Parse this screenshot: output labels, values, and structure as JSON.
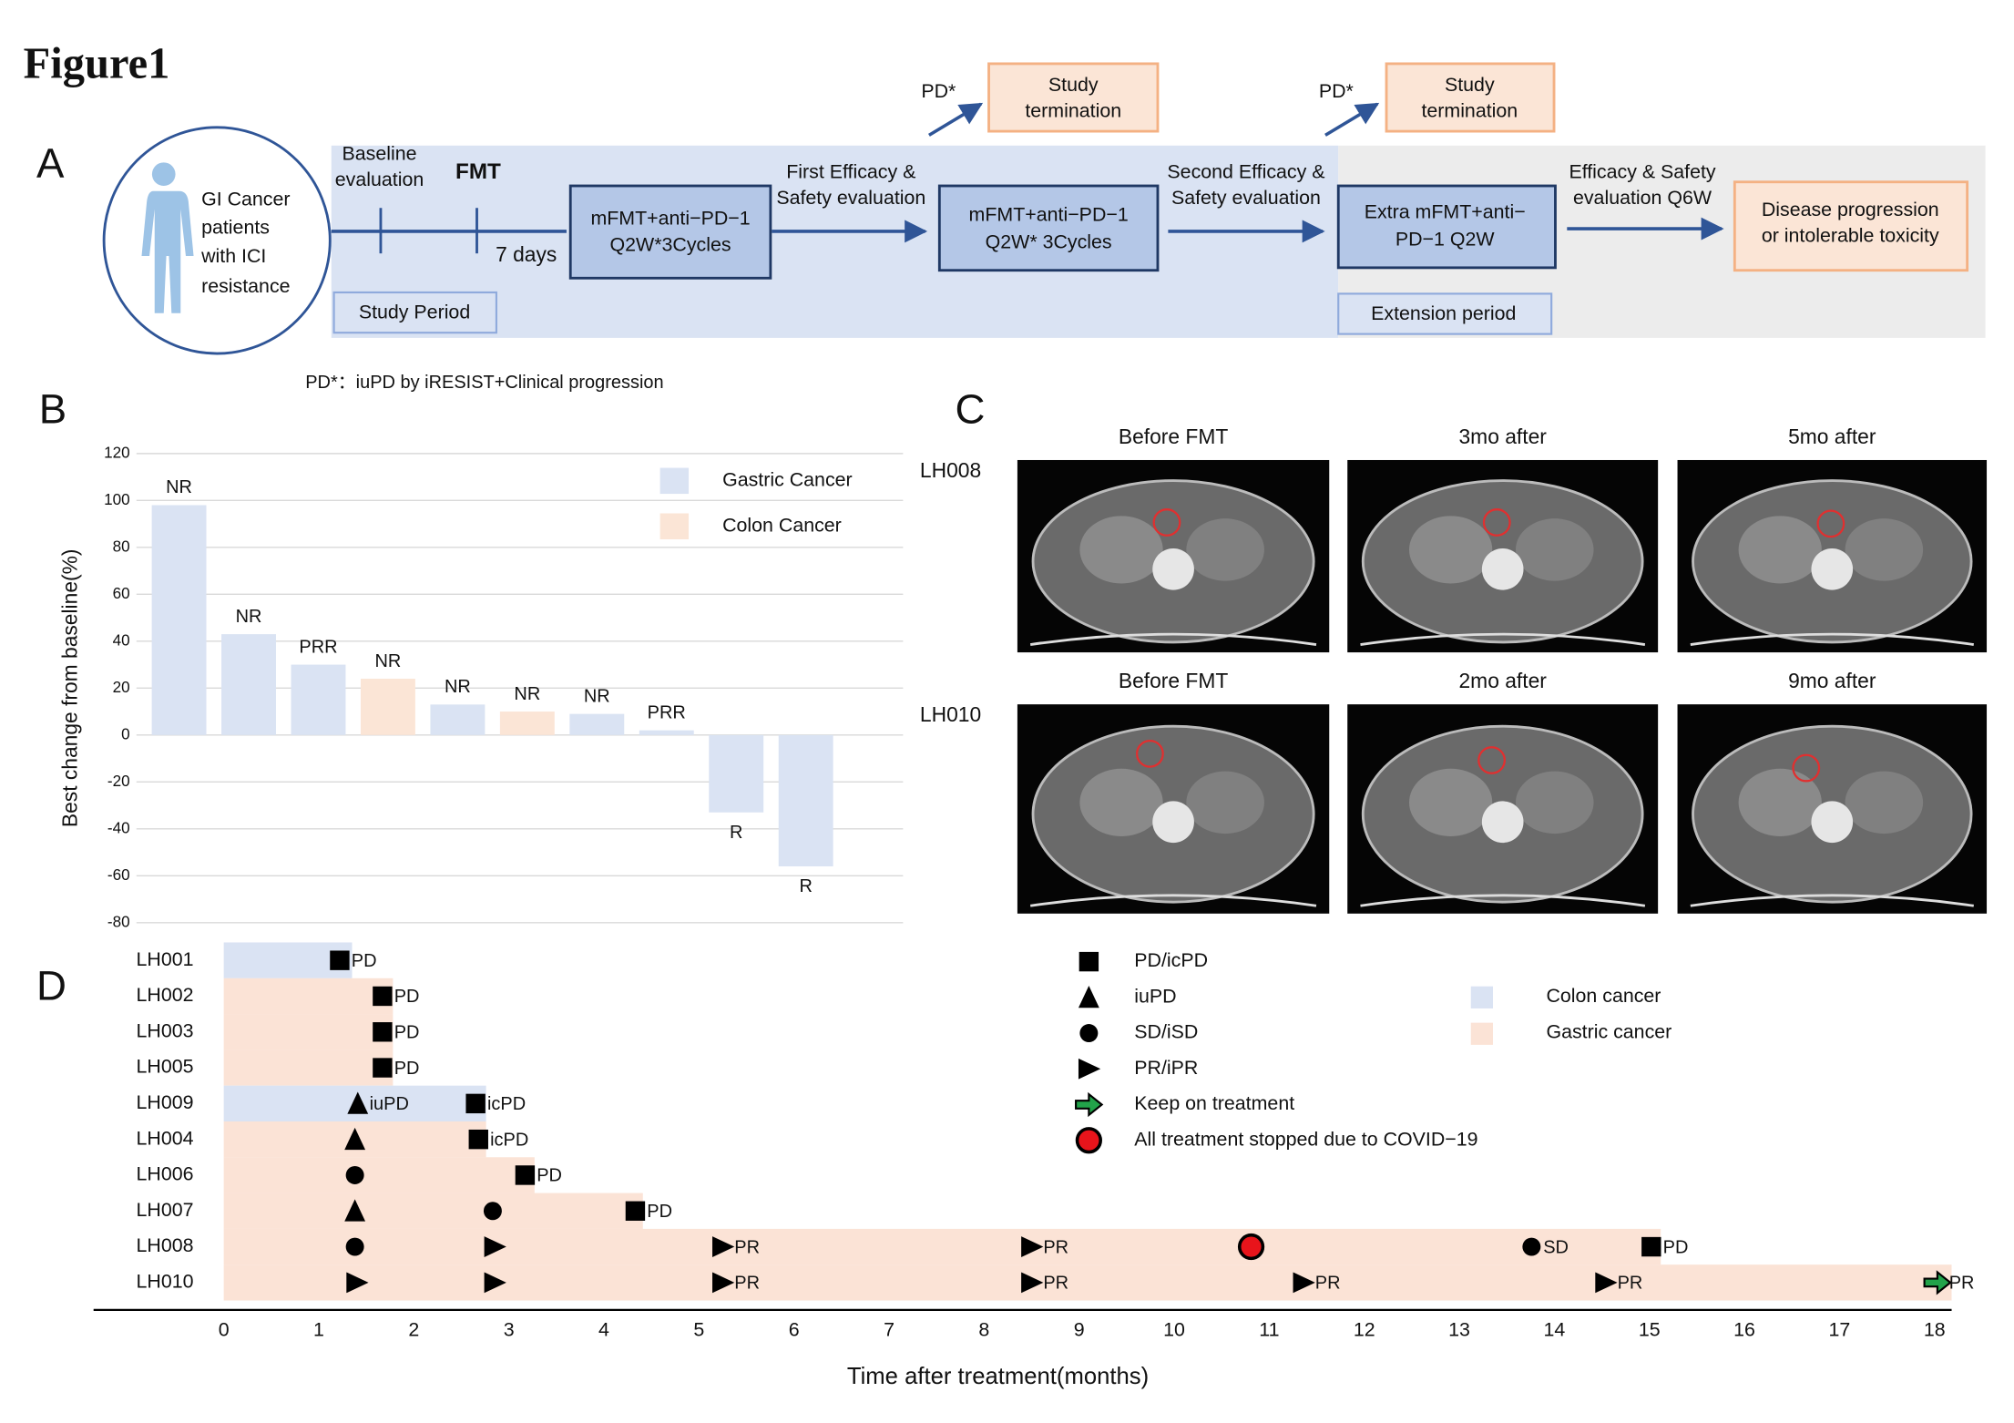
{
  "figure_title": "Figure1",
  "panel_labels": [
    "A",
    "B",
    "C",
    "D"
  ],
  "diagram": {
    "patients": [
      "GI Cancer",
      "patients",
      "with ICI",
      "resistance"
    ],
    "baseline": [
      "Baseline",
      "evaluation"
    ],
    "fmt": "FMT",
    "interval": "7 days",
    "steps": [
      [
        "mFMT+anti−PD−1",
        "Q2W*3Cycles"
      ],
      [
        "mFMT+anti−PD−1",
        "Q2W* 3Cycles"
      ],
      [
        "Extra mFMT+anti−",
        "PD−1 Q2W"
      ],
      [
        "Disease progression",
        "or intolerable toxicity"
      ]
    ],
    "evaluations": [
      [
        "First Efficacy &",
        "Safety evaluation"
      ],
      [
        "Second Efficacy &",
        "Safety evaluation"
      ],
      [
        "Efficacy & Safety",
        "evaluation Q6W"
      ]
    ],
    "periods": [
      "Study Period",
      "Extension period"
    ],
    "terminations": [
      {
        "trigger": "PD*",
        "outcome": [
          "Study",
          "termination"
        ]
      },
      {
        "trigger": "PD*",
        "outcome": [
          "Study",
          "termination"
        ]
      }
    ],
    "footnote": "PD*：iuPD by iRESIST+Clinical progression"
  },
  "chart_data": [
    {
      "type": "bar",
      "ylabel": "Best change from baseline(%)",
      "categories": [
        null,
        null,
        null,
        null,
        null,
        null,
        null,
        null,
        null,
        null
      ],
      "series": [
        {
          "name": "Gastric Cancer",
          "color": "#dae3f3",
          "values": [
            98,
            43,
            30,
            null,
            13,
            null,
            9,
            2,
            -33,
            -56
          ]
        },
        {
          "name": "Colon Cancer",
          "color": "#fbe5d6",
          "values": [
            null,
            null,
            null,
            24,
            null,
            10,
            null,
            null,
            null,
            null
          ]
        }
      ],
      "bar_labels": [
        "NR",
        "NR",
        "PRR",
        "NR",
        "NR",
        "NR",
        "NR",
        "PRR",
        "R",
        "R"
      ],
      "ylim": [
        -80,
        120
      ],
      "yticks": [
        -80,
        -60,
        -40,
        -20,
        0,
        20,
        40,
        60,
        80,
        100,
        120
      ],
      "grid": true
    },
    {
      "type": "swimmer",
      "xlabel": "Time after treatment(months)",
      "xlim": [
        -1.37,
        18.18
      ],
      "xticks": [
        0,
        1,
        2,
        3,
        4,
        5,
        6,
        7,
        8,
        9,
        10,
        11,
        12,
        13,
        14,
        15,
        16,
        17,
        18
      ],
      "groups": [
        {
          "name": "Colon cancer",
          "color": "#dae3f3"
        },
        {
          "name": "Gastric cancer",
          "color": "#fbe3d6"
        }
      ],
      "markers": [
        {
          "shape": "square",
          "label": "PD/icPD"
        },
        {
          "shape": "triangle",
          "label": "iuPD"
        },
        {
          "shape": "circle",
          "label": "SD/iSD"
        },
        {
          "shape": "right",
          "label": "PR/iPR"
        },
        {
          "shape": "arrow",
          "label": "Keep on treatment"
        },
        {
          "shape": "covid",
          "label": "All treatment stopped due to COVID−19"
        }
      ],
      "patients": [
        {
          "id": "LH001",
          "color": "#dae3f3",
          "duration": 1.35,
          "events": [
            {
              "x": 1.22,
              "marker": "square",
              "label": "PD"
            }
          ]
        },
        {
          "id": "LH002",
          "color": "#fbe3d6",
          "duration": 1.78,
          "events": [
            {
              "x": 1.67,
              "marker": "square",
              "label": "PD"
            }
          ]
        },
        {
          "id": "LH003",
          "color": "#fbe3d6",
          "duration": 1.78,
          "events": [
            {
              "x": 1.67,
              "marker": "square",
              "label": "PD"
            }
          ]
        },
        {
          "id": "LH005",
          "color": "#fbe3d6",
          "duration": 1.78,
          "events": [
            {
              "x": 1.67,
              "marker": "square",
              "label": "PD"
            }
          ]
        },
        {
          "id": "LH009",
          "color": "#dae3f3",
          "duration": 2.76,
          "events": [
            {
              "x": 1.41,
              "marker": "triangle",
              "label": "iuPD"
            },
            {
              "x": 2.65,
              "marker": "square",
              "label": "icPD"
            }
          ]
        },
        {
          "id": "LH004",
          "color": "#fbe3d6",
          "duration": 2.76,
          "events": [
            {
              "x": 1.38,
              "marker": "triangle"
            },
            {
              "x": 2.68,
              "marker": "square",
              "label": "icPD"
            }
          ]
        },
        {
          "id": "LH006",
          "color": "#fbe3d6",
          "duration": 3.27,
          "events": [
            {
              "x": 1.38,
              "marker": "circle"
            },
            {
              "x": 3.17,
              "marker": "square",
              "label": "PD"
            }
          ]
        },
        {
          "id": "LH007",
          "color": "#fbe3d6",
          "duration": 4.41,
          "events": [
            {
              "x": 1.38,
              "marker": "triangle"
            },
            {
              "x": 2.83,
              "marker": "circle"
            },
            {
              "x": 4.33,
              "marker": "square",
              "label": "PD"
            }
          ]
        },
        {
          "id": "LH008",
          "color": "#fbe3d6",
          "duration": 15.12,
          "events": [
            {
              "x": 1.38,
              "marker": "circle"
            },
            {
              "x": 2.85,
              "marker": "right"
            },
            {
              "x": 5.25,
              "marker": "right",
              "label": "PR"
            },
            {
              "x": 8.5,
              "marker": "right",
              "label": "PR"
            },
            {
              "x": 10.81,
              "marker": "covid"
            },
            {
              "x": 13.76,
              "marker": "circle",
              "label": "SD"
            },
            {
              "x": 15.02,
              "marker": "square",
              "label": "PD"
            }
          ]
        },
        {
          "id": "LH010",
          "color": "#fbe3d6",
          "duration": 18.18,
          "events": [
            {
              "x": 1.4,
              "marker": "right"
            },
            {
              "x": 2.85,
              "marker": "right"
            },
            {
              "x": 5.25,
              "marker": "right",
              "label": "PR"
            },
            {
              "x": 8.5,
              "marker": "right",
              "label": "PR"
            },
            {
              "x": 11.36,
              "marker": "right",
              "label": "PR"
            },
            {
              "x": 14.54,
              "marker": "right",
              "label": "PR"
            },
            {
              "x": 18.03,
              "marker": "arrow",
              "label": "PR"
            }
          ]
        }
      ]
    }
  ],
  "ct_panel": {
    "rows": [
      {
        "patient": "LH008",
        "timepoints": [
          "Before FMT",
          "3mo after",
          "5mo after"
        ]
      },
      {
        "patient": "LH010",
        "timepoints": [
          "Before FMT",
          "2mo after",
          "9mo after"
        ]
      }
    ]
  }
}
